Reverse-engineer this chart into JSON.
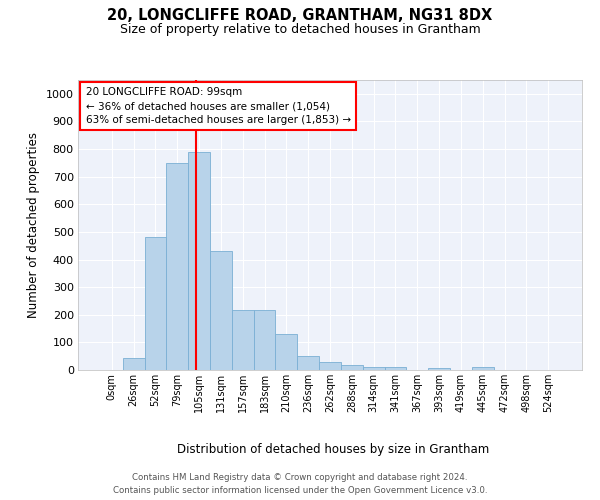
{
  "title": "20, LONGCLIFFE ROAD, GRANTHAM, NG31 8DX",
  "subtitle": "Size of property relative to detached houses in Grantham",
  "xlabel": "Distribution of detached houses by size in Grantham",
  "ylabel": "Number of detached properties",
  "bar_color": "#b8d3ea",
  "bar_edge_color": "#7aafd4",
  "background_color": "#eef2fa",
  "grid_color": "#ffffff",
  "categories": [
    "0sqm",
    "26sqm",
    "52sqm",
    "79sqm",
    "105sqm",
    "131sqm",
    "157sqm",
    "183sqm",
    "210sqm",
    "236sqm",
    "262sqm",
    "288sqm",
    "314sqm",
    "341sqm",
    "367sqm",
    "393sqm",
    "419sqm",
    "445sqm",
    "472sqm",
    "498sqm",
    "524sqm"
  ],
  "values": [
    0,
    45,
    480,
    750,
    790,
    430,
    218,
    218,
    130,
    52,
    30,
    18,
    12,
    10,
    0,
    8,
    0,
    12,
    0,
    0,
    0
  ],
  "ylim": [
    0,
    1050
  ],
  "yticks": [
    0,
    100,
    200,
    300,
    400,
    500,
    600,
    700,
    800,
    900,
    1000
  ],
  "annotation_text": "20 LONGCLIFFE ROAD: 99sqm\n← 36% of detached houses are smaller (1,054)\n63% of semi-detached houses are larger (1,853) →",
  "footer_line1": "Contains HM Land Registry data © Crown copyright and database right 2024.",
  "footer_line2": "Contains public sector information licensed under the Open Government Licence v3.0.",
  "red_line_x": 3.88
}
